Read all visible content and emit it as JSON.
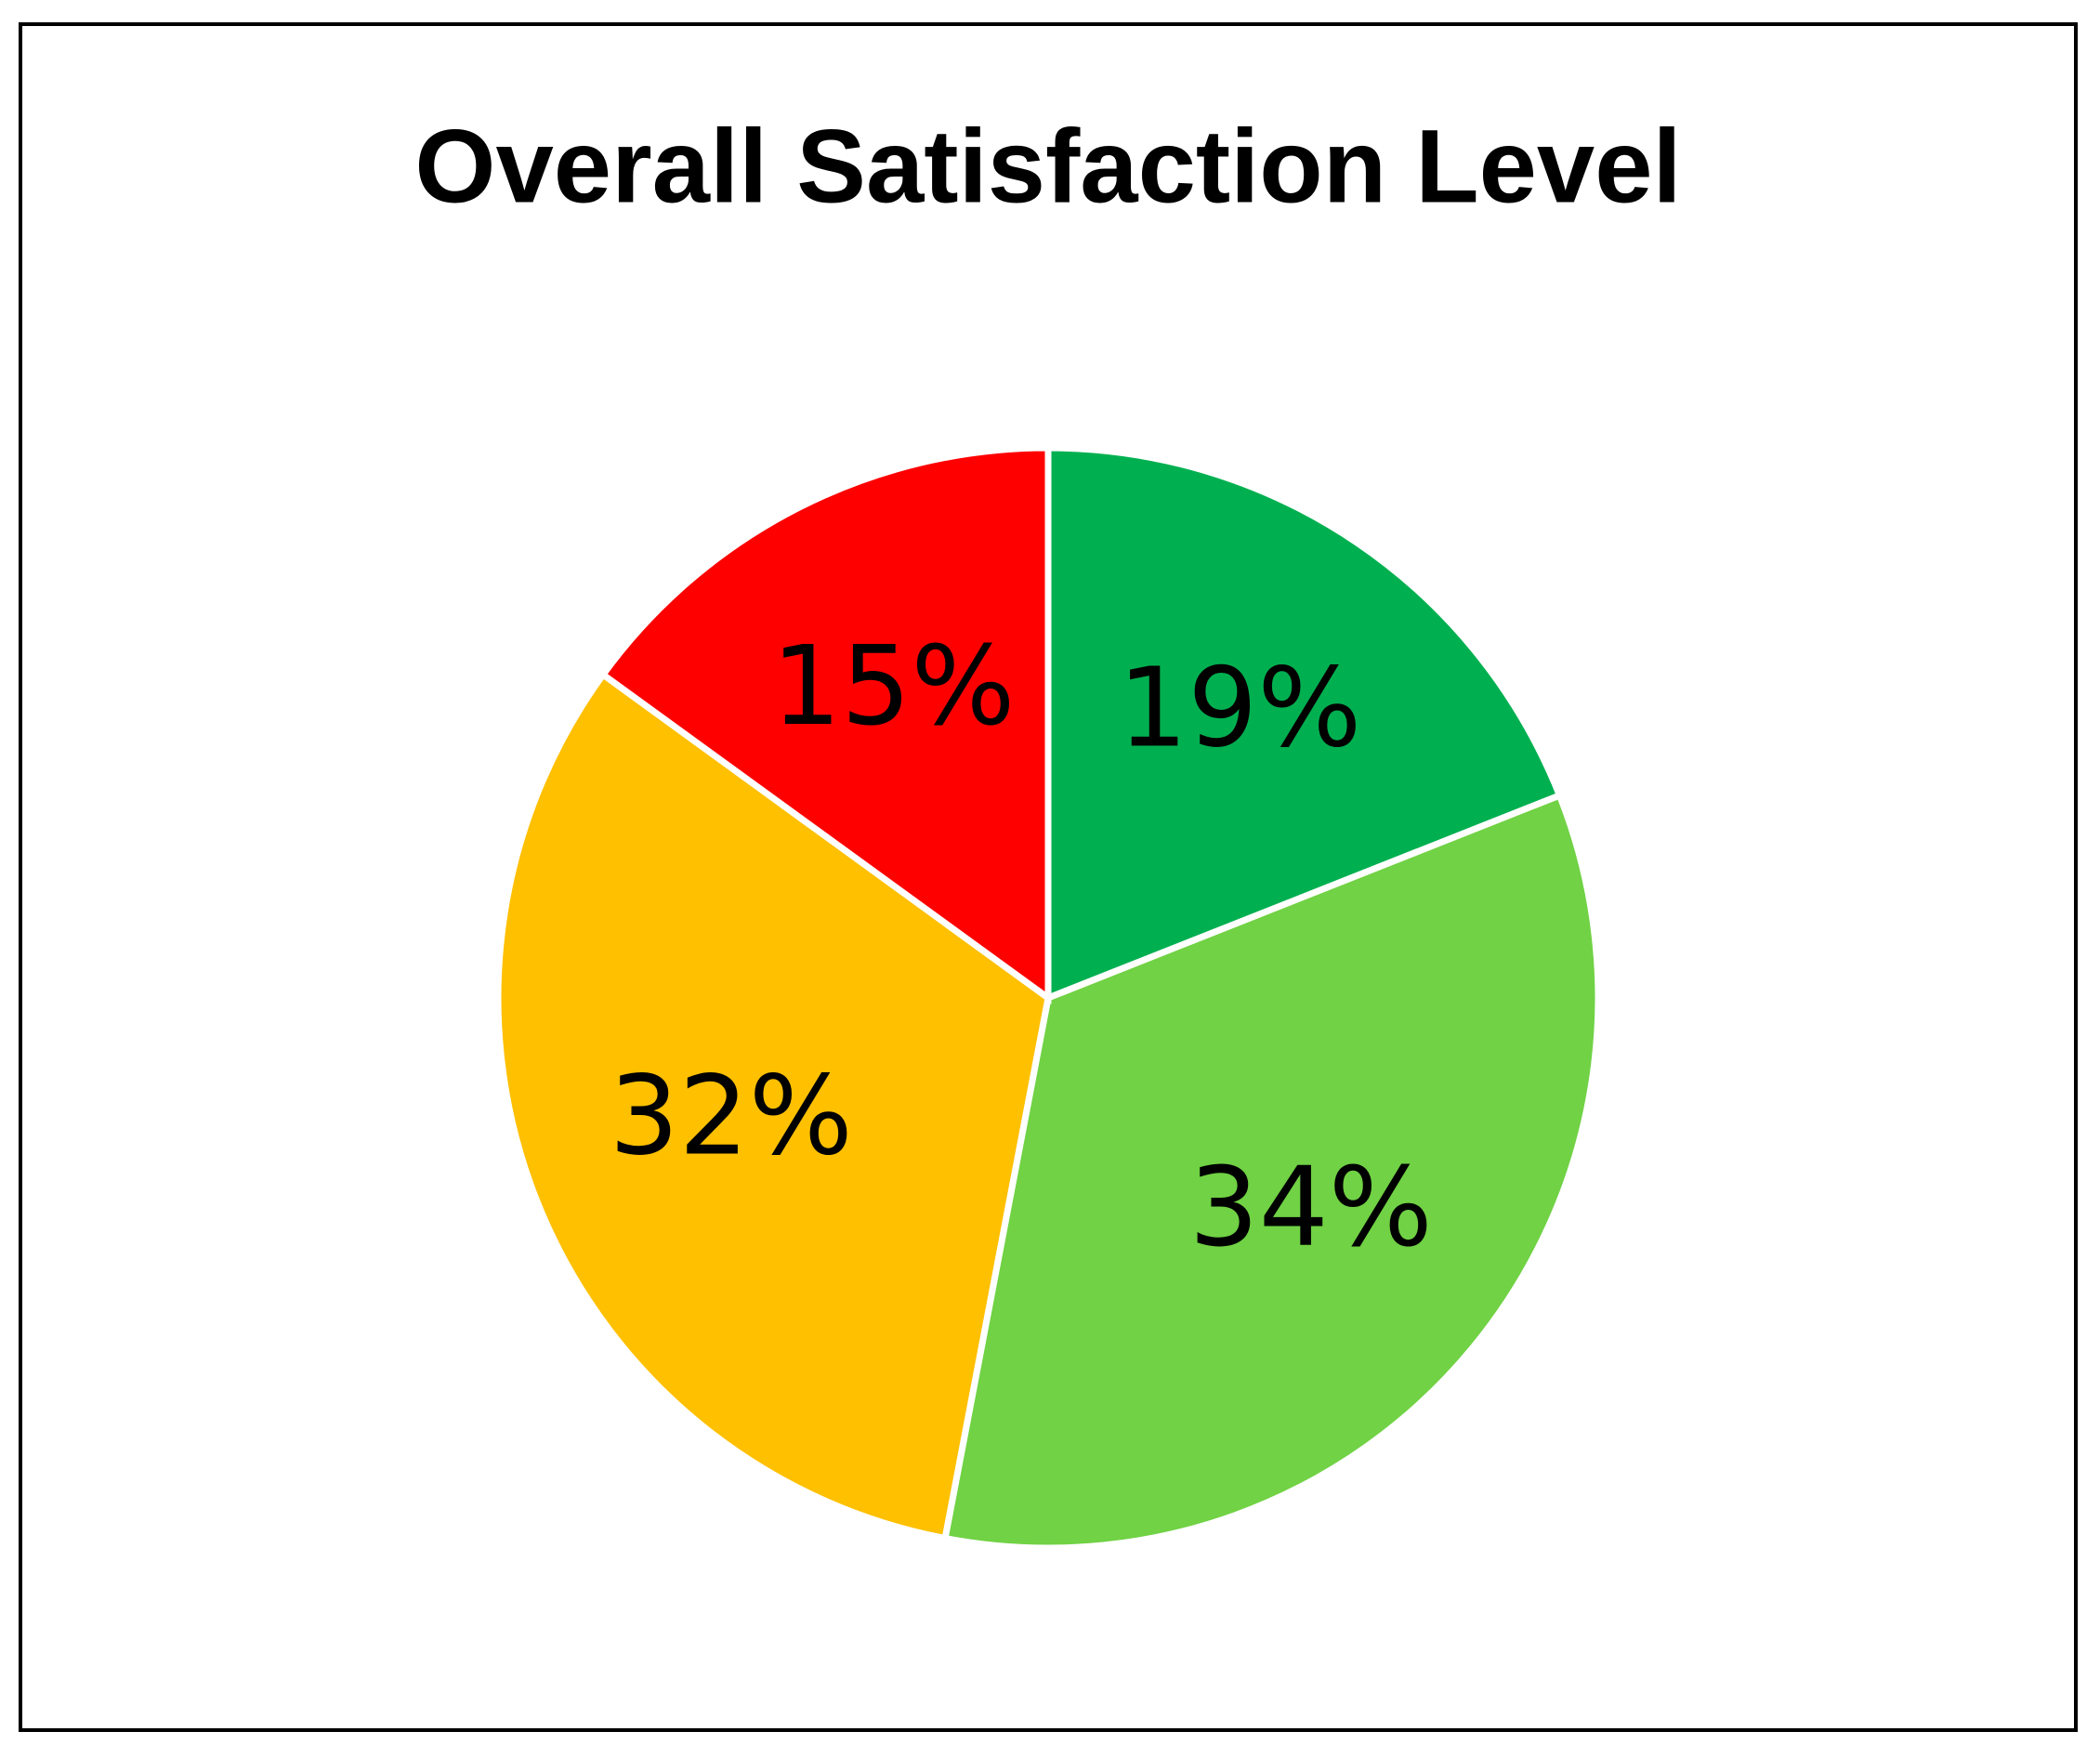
{
  "chart_data": {
    "type": "pie",
    "title": "Overall Satisfaction Level",
    "values": [
      19,
      34,
      32,
      15
    ],
    "value_labels": [
      "19%",
      "34%",
      "32%",
      "15%"
    ],
    "colors": [
      "#00b050",
      "#70d244",
      "#ffc000",
      "#ff0000"
    ]
  }
}
